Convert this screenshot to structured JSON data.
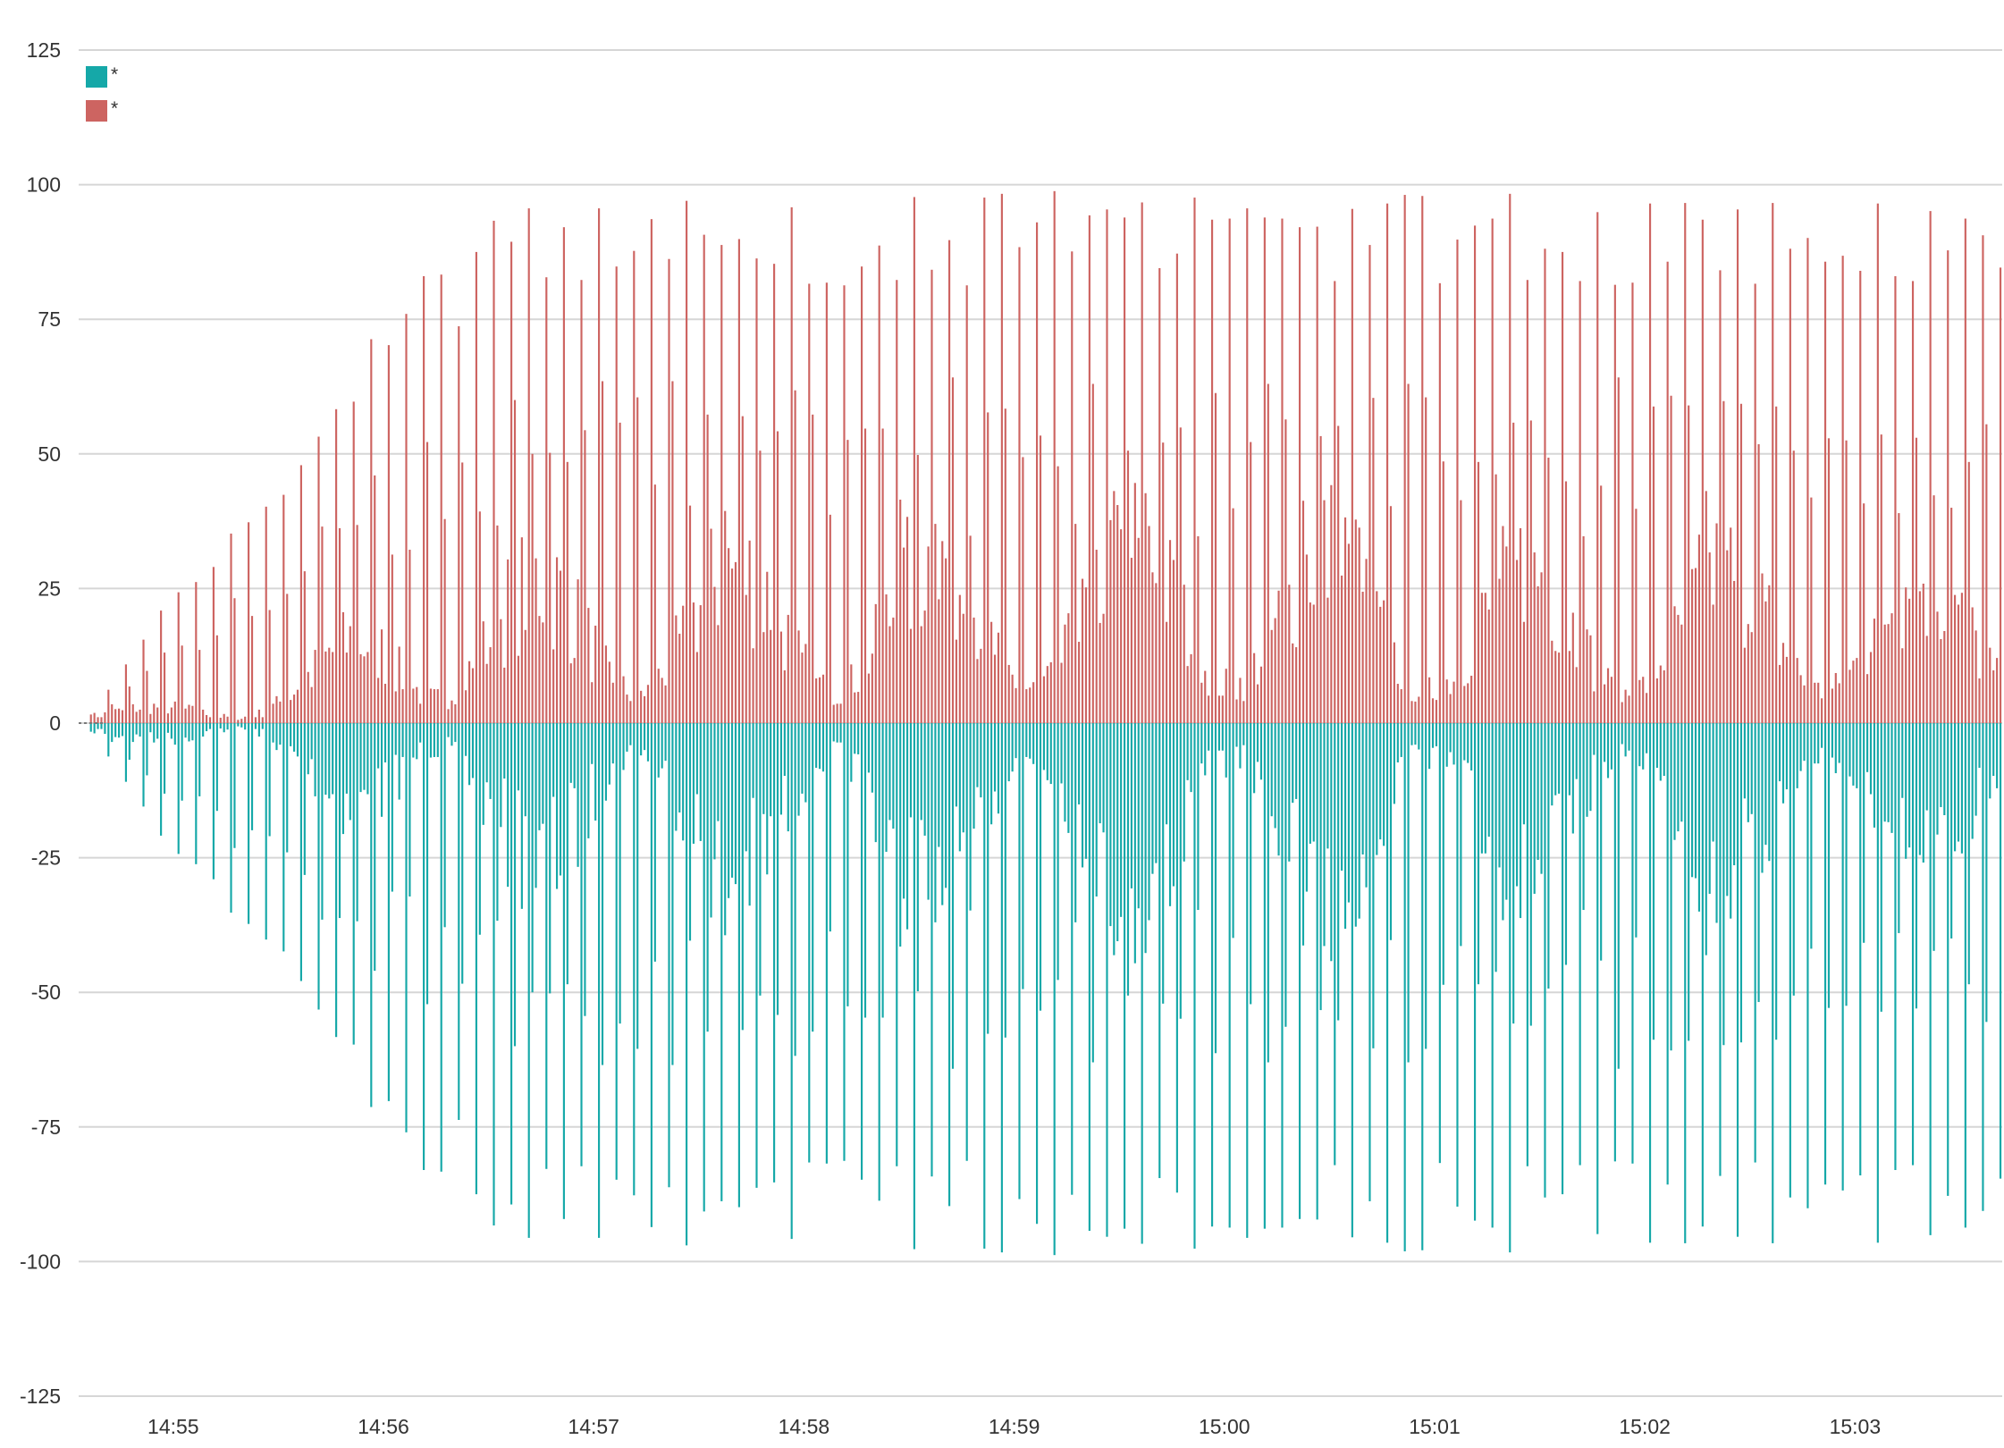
{
  "chart_data": {
    "type": "bar",
    "title": "",
    "xlabel": "",
    "ylabel": "",
    "ylim": [
      -125,
      125
    ],
    "y_ticks": [
      "125",
      "100",
      "75",
      "50",
      "25",
      "0",
      "-25",
      "-50",
      "-75",
      "-100",
      "-125"
    ],
    "y_tick_values": [
      125,
      100,
      75,
      50,
      25,
      0,
      -25,
      -50,
      -75,
      -100,
      -125
    ],
    "x_domain": [
      "14:54:33",
      "15:03:42"
    ],
    "x_ticks": [
      "14:55",
      "14:56",
      "14:57",
      "14:58",
      "14:59",
      "15:00",
      "15:01",
      "15:02",
      "15:03"
    ],
    "x_tick_times": [
      "14:55:00",
      "14:56:00",
      "14:57:00",
      "14:58:00",
      "14:59:00",
      "15:00:00",
      "15:01:00",
      "15:02:00",
      "15:03:00"
    ],
    "grid": true,
    "legend_position": "top-left",
    "bar_interval_seconds": 1,
    "series": [
      {
        "name": "*",
        "color": "#15a8a8",
        "sign": "negative",
        "start": "14:54:36",
        "values": []
      },
      {
        "name": "*",
        "color": "#cd6461",
        "sign": "positive",
        "start": "14:54:36",
        "values": []
      }
    ],
    "value_summary": {
      "description": "Mirrored series: magnitudes ramp from ~0 at 14:54:36 up to peaks of ~100 from about 14:56:30 onward, with periodic spikes roughly every 5 seconds.",
      "keyframes_time": [
        "14:54:36",
        "14:55:00",
        "14:55:20",
        "14:55:40",
        "14:56:00",
        "14:56:30",
        "14:57:00",
        "14:58:00",
        "14:59:00",
        "15:00:00",
        "15:01:00",
        "15:02:00",
        "15:03:00",
        "15:03:40"
      ],
      "keyframes_peak": [
        2,
        25,
        40,
        58,
        78,
        95,
        98,
        99,
        99,
        99,
        99,
        99,
        99,
        97
      ],
      "keyframes_base": [
        2,
        4,
        6,
        12,
        22,
        28,
        30,
        32,
        34,
        38,
        32,
        30,
        32,
        28
      ]
    }
  }
}
